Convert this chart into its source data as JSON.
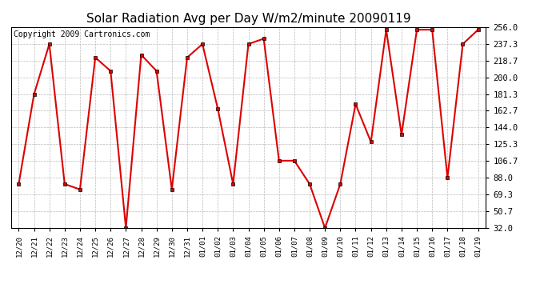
{
  "title": "Solar Radiation Avg per Day W/m2/minute 20090119",
  "copyright": "Copyright 2009 Cartronics.com",
  "labels": [
    "12/20",
    "12/21",
    "12/22",
    "12/23",
    "12/24",
    "12/25",
    "12/26",
    "12/27",
    "12/28",
    "12/29",
    "12/30",
    "12/31",
    "01/01",
    "01/02",
    "01/03",
    "01/04",
    "01/05",
    "01/06",
    "01/07",
    "01/08",
    "01/09",
    "01/10",
    "01/11",
    "01/12",
    "01/13",
    "01/14",
    "01/15",
    "01/16",
    "01/17",
    "01/18",
    "01/19"
  ],
  "values": [
    81,
    181,
    237,
    81,
    75,
    222,
    207,
    32,
    225,
    207,
    75,
    222,
    237,
    165,
    81,
    237,
    243,
    107,
    107,
    81,
    32,
    81,
    170,
    128,
    253,
    136,
    253,
    253,
    88,
    237,
    253
  ],
  "yticks": [
    32.0,
    50.7,
    69.3,
    88.0,
    106.7,
    125.3,
    144.0,
    162.7,
    181.3,
    200.0,
    218.7,
    237.3,
    256.0
  ],
  "ylim": [
    32.0,
    256.0
  ],
  "line_color": "#dd0000",
  "marker": "s",
  "marker_size": 3,
  "bg_color": "#ffffff",
  "plot_bg_color": "#ffffff",
  "grid_color": "#bbbbbb",
  "title_fontsize": 11,
  "copyright_fontsize": 7
}
